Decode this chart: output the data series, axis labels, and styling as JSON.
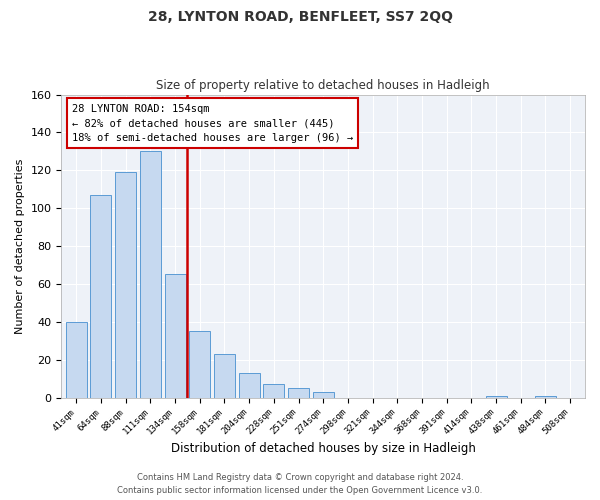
{
  "title": "28, LYNTON ROAD, BENFLEET, SS7 2QQ",
  "subtitle": "Size of property relative to detached houses in Hadleigh",
  "xlabel": "Distribution of detached houses by size in Hadleigh",
  "ylabel": "Number of detached properties",
  "bar_labels": [
    "41sqm",
    "64sqm",
    "88sqm",
    "111sqm",
    "134sqm",
    "158sqm",
    "181sqm",
    "204sqm",
    "228sqm",
    "251sqm",
    "274sqm",
    "298sqm",
    "321sqm",
    "344sqm",
    "368sqm",
    "391sqm",
    "414sqm",
    "438sqm",
    "461sqm",
    "484sqm",
    "508sqm"
  ],
  "bar_values": [
    40,
    107,
    119,
    130,
    65,
    35,
    23,
    13,
    7,
    5,
    3,
    0,
    0,
    0,
    0,
    0,
    0,
    1,
    0,
    1,
    0
  ],
  "bar_color": "#c6d9f0",
  "bar_edge_color": "#5b9bd5",
  "vline_color": "#cc0000",
  "annotation_title": "28 LYNTON ROAD: 154sqm",
  "annotation_line1": "← 82% of detached houses are smaller (445)",
  "annotation_line2": "18% of semi-detached houses are larger (96) →",
  "annotation_box_color": "#ffffff",
  "annotation_box_edge": "#cc0000",
  "plot_bg_color": "#eef2f8",
  "grid_color": "#ffffff",
  "ylim": [
    0,
    160
  ],
  "yticks": [
    0,
    20,
    40,
    60,
    80,
    100,
    120,
    140,
    160
  ],
  "footer1": "Contains HM Land Registry data © Crown copyright and database right 2024.",
  "footer2": "Contains public sector information licensed under the Open Government Licence v3.0."
}
